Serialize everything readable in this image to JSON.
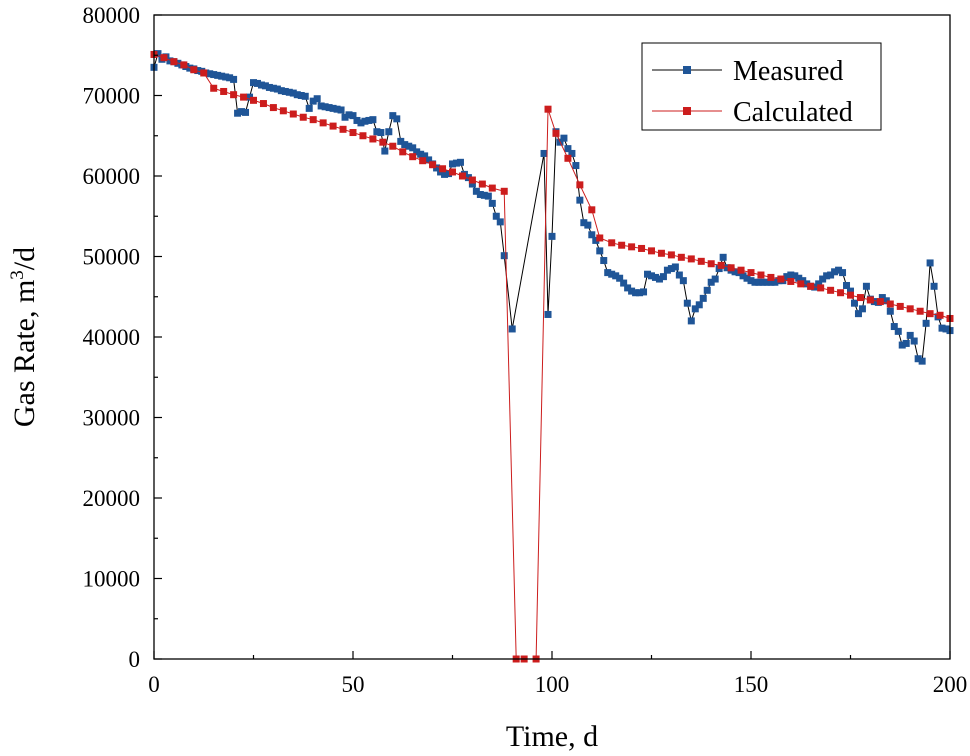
{
  "chart_data": {
    "type": "line",
    "xlabel": "Time, d",
    "ylabel_prefix": "Gas Rate, m",
    "ylabel_sup": "3",
    "ylabel_suffix": "/d",
    "xlim": [
      0,
      200
    ],
    "ylim": [
      0,
      80000
    ],
    "xticks": [
      0,
      50,
      100,
      150,
      200
    ],
    "yticks": [
      0,
      10000,
      20000,
      30000,
      40000,
      50000,
      60000,
      70000,
      80000
    ],
    "grid": false,
    "legend_position": "top-right",
    "series": [
      {
        "name": "Measured",
        "color": "#1f5597",
        "points": [
          [
            0,
            73500
          ],
          [
            1,
            75200
          ],
          [
            2,
            74500
          ],
          [
            3,
            74800
          ],
          [
            4,
            74300
          ],
          [
            5,
            74200
          ],
          [
            6,
            74000
          ],
          [
            7,
            73800
          ],
          [
            8,
            73600
          ],
          [
            9,
            73400
          ],
          [
            10,
            73300
          ],
          [
            11,
            73100
          ],
          [
            12,
            73000
          ],
          [
            13,
            72800
          ],
          [
            14,
            72700
          ],
          [
            15,
            72600
          ],
          [
            16,
            72500
          ],
          [
            17,
            72400
          ],
          [
            18,
            72300
          ],
          [
            19,
            72200
          ],
          [
            20,
            72000
          ],
          [
            21,
            67800
          ],
          [
            22,
            68000
          ],
          [
            23,
            67900
          ],
          [
            24,
            69800
          ],
          [
            25,
            71600
          ],
          [
            26,
            71500
          ],
          [
            27,
            71300
          ],
          [
            28,
            71200
          ],
          [
            29,
            71000
          ],
          [
            30,
            70900
          ],
          [
            31,
            70800
          ],
          [
            32,
            70600
          ],
          [
            33,
            70500
          ],
          [
            34,
            70400
          ],
          [
            35,
            70300
          ],
          [
            36,
            70100
          ],
          [
            37,
            70000
          ],
          [
            38,
            69900
          ],
          [
            39,
            68400
          ],
          [
            40,
            69300
          ],
          [
            41,
            69600
          ],
          [
            42,
            68700
          ],
          [
            43,
            68600
          ],
          [
            44,
            68500
          ],
          [
            45,
            68400
          ],
          [
            46,
            68300
          ],
          [
            47,
            68200
          ],
          [
            48,
            67300
          ],
          [
            49,
            67600
          ],
          [
            50,
            67500
          ],
          [
            51,
            66900
          ],
          [
            52,
            66600
          ],
          [
            53,
            66800
          ],
          [
            54,
            66900
          ],
          [
            55,
            67000
          ],
          [
            56,
            65500
          ],
          [
            57,
            65400
          ],
          [
            58,
            63100
          ],
          [
            59,
            65500
          ],
          [
            60,
            67500
          ],
          [
            61,
            67100
          ],
          [
            62,
            64300
          ],
          [
            63,
            63900
          ],
          [
            64,
            63700
          ],
          [
            65,
            63500
          ],
          [
            66,
            63000
          ],
          [
            67,
            62700
          ],
          [
            68,
            62500
          ],
          [
            69,
            62000
          ],
          [
            70,
            61500
          ],
          [
            71,
            61000
          ],
          [
            72,
            60500
          ],
          [
            73,
            60200
          ],
          [
            74,
            60300
          ],
          [
            75,
            61500
          ],
          [
            76,
            61600
          ],
          [
            77,
            61700
          ],
          [
            78,
            60200
          ],
          [
            79,
            59800
          ],
          [
            80,
            59000
          ],
          [
            81,
            58100
          ],
          [
            82,
            57700
          ],
          [
            83,
            57600
          ],
          [
            84,
            57500
          ],
          [
            85,
            56600
          ],
          [
            86,
            55000
          ],
          [
            87,
            54300
          ],
          [
            88,
            50100
          ],
          [
            90,
            41000
          ],
          [
            98,
            62800
          ],
          [
            99,
            42800
          ],
          [
            100,
            52500
          ],
          [
            101,
            65500
          ],
          [
            102,
            64200
          ],
          [
            103,
            64700
          ],
          [
            104,
            63400
          ],
          [
            105,
            62800
          ],
          [
            106,
            61300
          ],
          [
            107,
            57000
          ],
          [
            108,
            54200
          ],
          [
            109,
            53900
          ],
          [
            110,
            52700
          ],
          [
            111,
            52000
          ],
          [
            112,
            50700
          ],
          [
            113,
            49500
          ],
          [
            114,
            48000
          ],
          [
            115,
            47800
          ],
          [
            116,
            47600
          ],
          [
            117,
            47300
          ],
          [
            118,
            46700
          ],
          [
            119,
            46100
          ],
          [
            120,
            45700
          ],
          [
            121,
            45500
          ],
          [
            122,
            45500
          ],
          [
            123,
            45600
          ],
          [
            124,
            47800
          ],
          [
            125,
            47600
          ],
          [
            126,
            47400
          ],
          [
            127,
            47200
          ],
          [
            128,
            47500
          ],
          [
            129,
            48300
          ],
          [
            130,
            48500
          ],
          [
            131,
            48700
          ],
          [
            132,
            47700
          ],
          [
            133,
            47000
          ],
          [
            134,
            44200
          ],
          [
            135,
            42000
          ],
          [
            136,
            43500
          ],
          [
            137,
            44000
          ],
          [
            138,
            44800
          ],
          [
            139,
            45800
          ],
          [
            140,
            46800
          ],
          [
            141,
            47200
          ],
          [
            142,
            48500
          ],
          [
            143,
            49900
          ],
          [
            144,
            48600
          ],
          [
            145,
            48300
          ],
          [
            146,
            48100
          ],
          [
            147,
            48000
          ],
          [
            148,
            47600
          ],
          [
            149,
            47300
          ],
          [
            150,
            47000
          ],
          [
            151,
            46800
          ],
          [
            152,
            46800
          ],
          [
            153,
            46800
          ],
          [
            154,
            46800
          ],
          [
            155,
            46800
          ],
          [
            156,
            46800
          ],
          [
            157,
            47000
          ],
          [
            158,
            47000
          ],
          [
            159,
            47500
          ],
          [
            160,
            47700
          ],
          [
            161,
            47600
          ],
          [
            162,
            47300
          ],
          [
            163,
            47000
          ],
          [
            164,
            46600
          ],
          [
            165,
            46300
          ],
          [
            166,
            46200
          ],
          [
            167,
            46600
          ],
          [
            168,
            47200
          ],
          [
            169,
            47600
          ],
          [
            170,
            47700
          ],
          [
            171,
            48100
          ],
          [
            172,
            48300
          ],
          [
            173,
            48000
          ],
          [
            174,
            46400
          ],
          [
            175,
            45700
          ],
          [
            176,
            44200
          ],
          [
            177,
            42900
          ],
          [
            178,
            43500
          ],
          [
            179,
            46300
          ],
          [
            180,
            44700
          ],
          [
            181,
            44400
          ],
          [
            182,
            44300
          ],
          [
            183,
            44900
          ],
          [
            184,
            44500
          ],
          [
            185,
            43200
          ],
          [
            186,
            41300
          ],
          [
            187,
            40700
          ],
          [
            188,
            39000
          ],
          [
            189,
            39200
          ],
          [
            190,
            40200
          ],
          [
            191,
            39500
          ],
          [
            192,
            37300
          ],
          [
            193,
            37000
          ],
          [
            194,
            41700
          ],
          [
            195,
            49200
          ],
          [
            196,
            46300
          ],
          [
            197,
            42500
          ],
          [
            198,
            41100
          ],
          [
            199,
            41000
          ],
          [
            200,
            40800
          ]
        ]
      },
      {
        "name": "Calculated",
        "color": "#cc1d1d",
        "points": [
          [
            0,
            75100
          ],
          [
            2.5,
            74700
          ],
          [
            5,
            74200
          ],
          [
            7.5,
            73800
          ],
          [
            10,
            73200
          ],
          [
            12.5,
            72800
          ],
          [
            15,
            70900
          ],
          [
            17.5,
            70500
          ],
          [
            20,
            70100
          ],
          [
            22.5,
            69800
          ],
          [
            25,
            69400
          ],
          [
            27.5,
            69000
          ],
          [
            30,
            68500
          ],
          [
            32.5,
            68100
          ],
          [
            35,
            67700
          ],
          [
            37.5,
            67300
          ],
          [
            40,
            67000
          ],
          [
            42.5,
            66600
          ],
          [
            45,
            66200
          ],
          [
            47.5,
            65800
          ],
          [
            50,
            65400
          ],
          [
            52.5,
            65000
          ],
          [
            55,
            64600
          ],
          [
            57.5,
            64200
          ],
          [
            60,
            63700
          ],
          [
            62.5,
            63000
          ],
          [
            65,
            62400
          ],
          [
            67.5,
            61900
          ],
          [
            70,
            61400
          ],
          [
            72.5,
            60900
          ],
          [
            75,
            60500
          ],
          [
            77.5,
            60000
          ],
          [
            80,
            59500
          ],
          [
            82.5,
            59000
          ],
          [
            85,
            58500
          ],
          [
            88,
            58100
          ],
          [
            91,
            0
          ],
          [
            93,
            0
          ],
          [
            96,
            0
          ],
          [
            99,
            68300
          ],
          [
            101,
            65300
          ],
          [
            104,
            62200
          ],
          [
            107,
            58900
          ],
          [
            110,
            55800
          ],
          [
            112,
            52300
          ],
          [
            115,
            51700
          ],
          [
            117.5,
            51400
          ],
          [
            120,
            51200
          ],
          [
            122.5,
            51000
          ],
          [
            125,
            50700
          ],
          [
            127.5,
            50400
          ],
          [
            130,
            50200
          ],
          [
            132.5,
            49900
          ],
          [
            135,
            49700
          ],
          [
            137.5,
            49400
          ],
          [
            140,
            49100
          ],
          [
            142.5,
            48900
          ],
          [
            145,
            48600
          ],
          [
            147.5,
            48300
          ],
          [
            150,
            48000
          ],
          [
            152.5,
            47700
          ],
          [
            155,
            47400
          ],
          [
            157.5,
            47200
          ],
          [
            160,
            46900
          ],
          [
            162.5,
            46600
          ],
          [
            165,
            46300
          ],
          [
            167.5,
            46100
          ],
          [
            170,
            45800
          ],
          [
            172.5,
            45500
          ],
          [
            175,
            45200
          ],
          [
            177.5,
            44900
          ],
          [
            180,
            44600
          ],
          [
            182.5,
            44400
          ],
          [
            185,
            44100
          ],
          [
            187.5,
            43800
          ],
          [
            190,
            43500
          ],
          [
            192.5,
            43200
          ],
          [
            195,
            42900
          ],
          [
            197.5,
            42700
          ],
          [
            200,
            42300
          ]
        ]
      }
    ]
  }
}
